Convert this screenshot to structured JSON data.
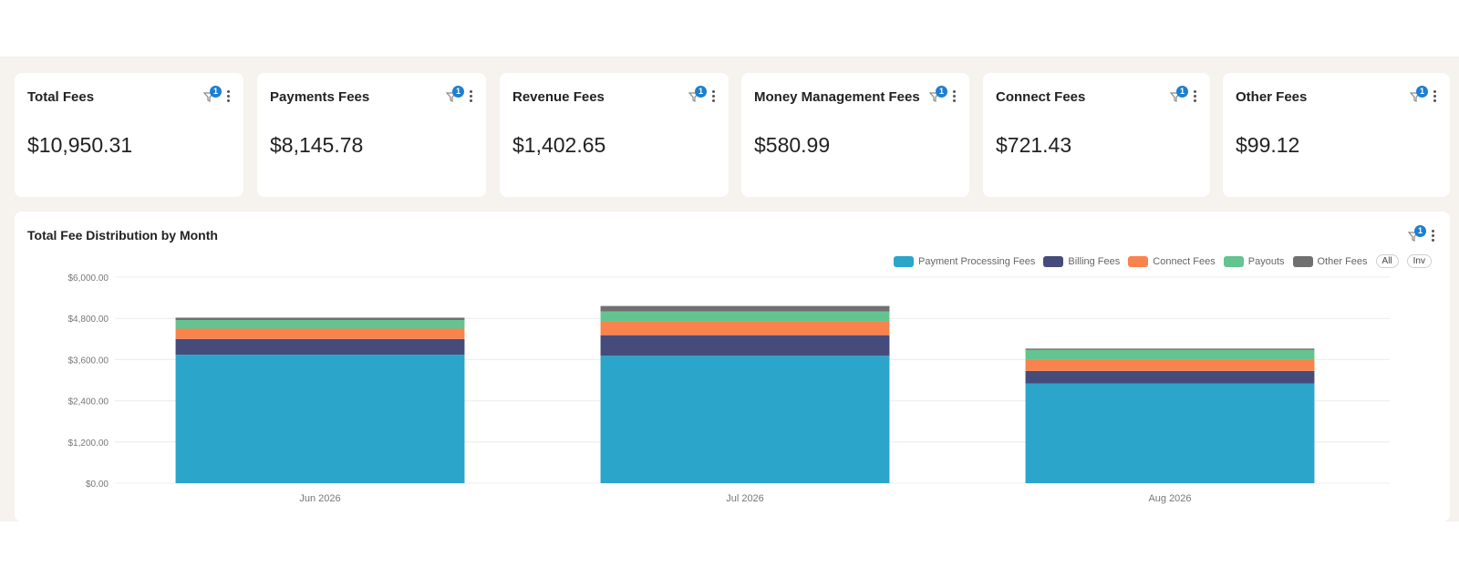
{
  "cards": [
    {
      "title": "Total Fees",
      "value": "$10,950.31",
      "badge": "1"
    },
    {
      "title": "Payments Fees",
      "value": "$8,145.78",
      "badge": "1"
    },
    {
      "title": "Revenue Fees",
      "value": "$1,402.65",
      "badge": "1"
    },
    {
      "title": "Money Management Fees",
      "value": "$580.99",
      "badge": "1"
    },
    {
      "title": "Connect Fees",
      "value": "$721.43",
      "badge": "1"
    },
    {
      "title": "Other Fees",
      "value": "$99.12",
      "badge": "1"
    }
  ],
  "chart_panel": {
    "title": "Total Fee Distribution by Month",
    "badge": "1",
    "all_label": "All",
    "inv_label": "Inv"
  },
  "icons": {
    "filter": "filter-icon",
    "menu": "kebab-menu-icon"
  },
  "colors": {
    "accent": "#1e7fcf",
    "band": "#f6f2ee"
  },
  "chart_data": {
    "type": "bar",
    "stacked": true,
    "title": "Total Fee Distribution by Month",
    "xlabel": "",
    "ylabel": "",
    "categories": [
      "Jun 2026",
      "Jul 2026",
      "Aug 2026"
    ],
    "series": [
      {
        "name": "Payment Processing Fees",
        "color": "#2ba5c9",
        "values": [
          3740,
          3710,
          2900
        ]
      },
      {
        "name": "Billing Fees",
        "color": "#454c7c",
        "values": [
          460,
          600,
          370
        ]
      },
      {
        "name": "Connect Fees",
        "color": "#f9834d",
        "values": [
          300,
          390,
          330
        ]
      },
      {
        "name": "Payouts",
        "color": "#63c490",
        "values": [
          250,
          300,
          280
        ]
      },
      {
        "name": "Other Fees",
        "color": "#707070",
        "values": [
          70,
          160,
          40
        ]
      }
    ],
    "ylim": [
      0,
      6000
    ],
    "yticks": [
      0,
      1200,
      2400,
      3600,
      4800,
      6000
    ],
    "ytick_labels": [
      "$0.00",
      "$1,200.00",
      "$2,400.00",
      "$3,600.00",
      "$4,800.00",
      "$6,000.00"
    ],
    "grid": true,
    "legend_position": "top-right"
  }
}
